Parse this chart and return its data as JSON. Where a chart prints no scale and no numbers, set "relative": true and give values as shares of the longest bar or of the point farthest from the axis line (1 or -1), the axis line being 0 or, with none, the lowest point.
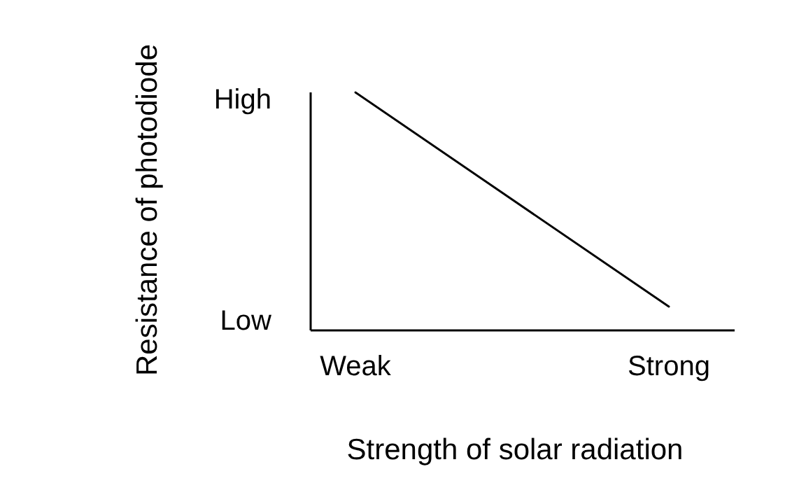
{
  "chart_data": {
    "type": "line",
    "xlabel": "Strength of solar radiation",
    "ylabel": "Resistance of photodiode",
    "categories": [
      "Weak",
      "Strong"
    ],
    "series": [
      {
        "color": "#000000",
        "values": [
          1,
          0.1
        ]
      }
    ],
    "relative": true,
    "annotations": [
      "High",
      "Low"
    ],
    "marker": "none",
    "line_style": "solid"
  }
}
